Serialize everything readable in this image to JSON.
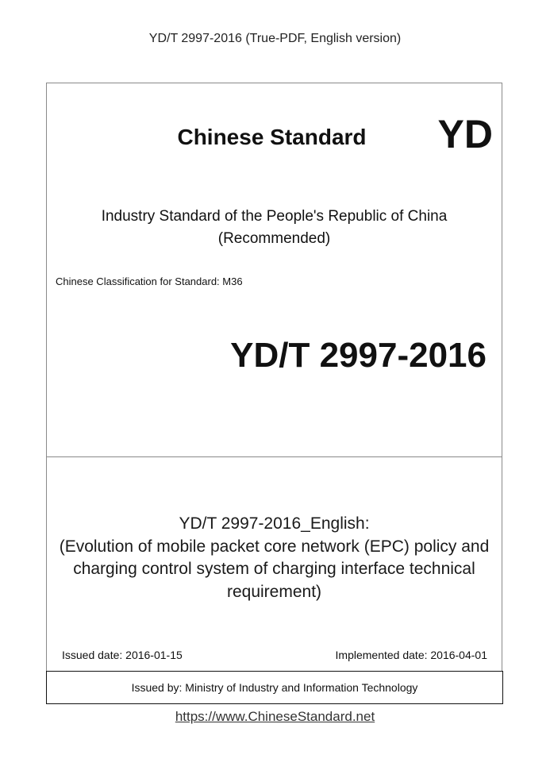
{
  "header": "YD/T 2997-2016 (True-PDF, English version)",
  "cover": {
    "heading": "Chinese Standard",
    "prefix_mark": "YD",
    "industry_line1": "Industry Standard of the People's Republic of China",
    "industry_line2": "(Recommended)",
    "classification": "Chinese Classification for Standard: M36",
    "standard_code": "YD/T 2997-2016",
    "title_lines": [
      "YD/T 2997-2016_English:",
      "(Evolution of mobile packet core network (EPC) policy and",
      "charging control system of charging interface technical",
      "requirement)"
    ],
    "issued_date": "Issued date: 2016-01-15",
    "implemented_date": "Implemented date: 2016-04-01",
    "issued_by": "Issued by: Ministry of Industry and Information Technology"
  },
  "footer_link": "https://www.ChineseStandard.net"
}
